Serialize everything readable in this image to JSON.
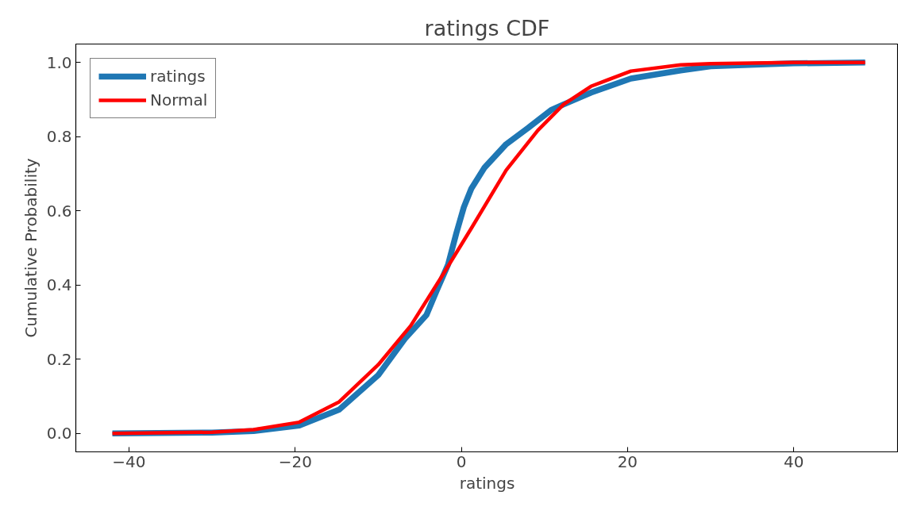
{
  "chart_data": {
    "type": "line",
    "title": "ratings CDF",
    "xlabel": "ratings",
    "ylabel": "Cumulative Probability",
    "xlim": [
      -46.4,
      52.6
    ],
    "ylim": [
      -0.05,
      1.05
    ],
    "xticks": [
      {
        "value": -40,
        "label": "−40"
      },
      {
        "value": -20,
        "label": "−20"
      },
      0,
      20,
      40
    ],
    "yticks": [
      {
        "value": 0,
        "label": "0.0"
      },
      {
        "value": 0.2,
        "label": "0.2"
      },
      {
        "value": 0.4,
        "label": "0.4"
      },
      {
        "value": 0.6,
        "label": "0.6"
      },
      {
        "value": 0.8,
        "label": "0.8"
      },
      {
        "value": 1,
        "label": "1.0"
      }
    ],
    "grid": false,
    "legend": "top left",
    "marker": "none",
    "line_style": "solid",
    "series": [
      {
        "name": "ratings",
        "color": "#1f77b4",
        "x": [
          -42,
          -30,
          -25,
          -19.5,
          -14.7,
          -10,
          -6.8,
          -4.2,
          -3.0,
          -1.6,
          -0.6,
          0.3,
          1.2,
          2.8,
          5.4,
          8,
          10.8,
          12.3,
          15.6,
          20.4,
          26.4,
          30,
          40,
          48.6
        ],
        "values": [
          0,
          0.002,
          0.006,
          0.021,
          0.064,
          0.157,
          0.255,
          0.319,
          0.383,
          0.455,
          0.54,
          0.61,
          0.66,
          0.717,
          0.78,
          0.823,
          0.872,
          0.887,
          0.919,
          0.957,
          0.979,
          0.99,
          0.998,
          1.0
        ]
      },
      {
        "name": "Normal",
        "color": "#ff0000",
        "x": [
          -42,
          -30,
          -25,
          -19.5,
          -14.7,
          -10,
          -6.1,
          -2.3,
          1.2,
          5.4,
          9.2,
          12.3,
          15.6,
          20.4,
          26.4,
          30,
          40,
          48.6
        ],
        "values": [
          0,
          0.003,
          0.01,
          0.03,
          0.085,
          0.185,
          0.29,
          0.425,
          0.553,
          0.71,
          0.817,
          0.887,
          0.936,
          0.977,
          0.994,
          0.997,
          1.0,
          1.0
        ]
      }
    ]
  }
}
